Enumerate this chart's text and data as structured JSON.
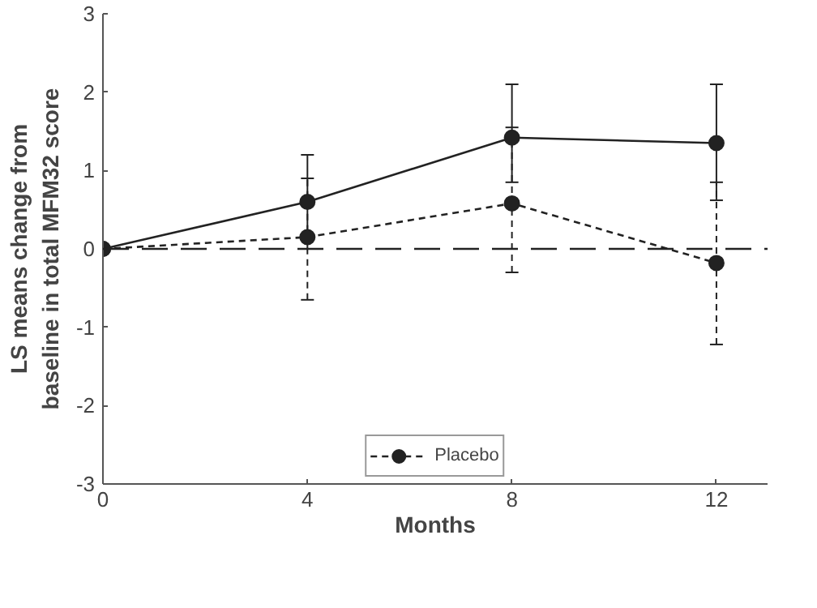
{
  "chart_data": {
    "type": "line",
    "xlabel": "Months",
    "ylabel": "LS means change from baseline in total MFM32 score",
    "x": [
      0,
      4,
      8,
      12
    ],
    "series": [
      {
        "color": "#222222",
        "line_style": "solid",
        "values": [
          0,
          0.6,
          1.42,
          1.35
        ],
        "errors": [
          null,
          [
            0,
            1.2
          ],
          [
            0.85,
            2.1
          ],
          [
            0.62,
            2.1
          ]
        ]
      },
      {
        "name": "Placebo",
        "color": "#222222",
        "line_style": "dashed",
        "values": [
          0,
          0.15,
          0.58,
          -0.18
        ],
        "errors": [
          null,
          [
            -0.65,
            0.9
          ],
          [
            -0.3,
            1.55
          ],
          [
            -1.22,
            0.85
          ]
        ]
      }
    ],
    "xlim": [
      0,
      13
    ],
    "xticks": [
      0,
      4,
      8,
      12
    ],
    "ylim": [
      -3,
      3
    ],
    "yticks": [
      -3,
      -2,
      -1,
      0,
      1,
      2,
      3
    ],
    "ref_lines": [
      {
        "axis": "y",
        "value": 0,
        "line_style": "dashed",
        "color": "#222222"
      }
    ],
    "marker": "circle",
    "grid": false,
    "legend": "bottom"
  }
}
